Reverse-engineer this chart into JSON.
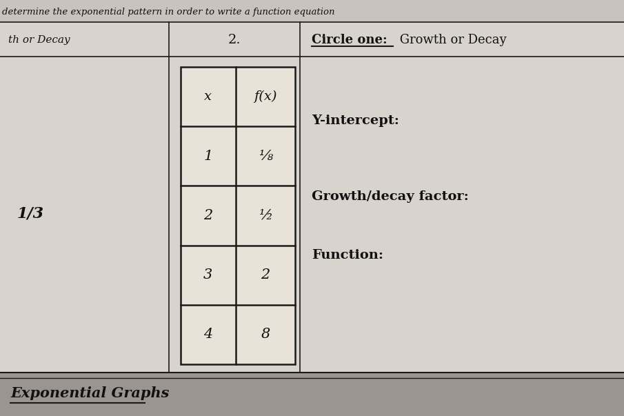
{
  "top_text": "determine the exponential pattern in order to write a function equation",
  "left_label": "th or Decay",
  "number_label": "2.",
  "circle_one_prefix": "Circle one:",
  "circle_one_rest": " Growth or Decay",
  "left_fraction": "1/3",
  "y_intercept_label": "Y-intercept:",
  "growth_decay_label": "Growth/decay factor:",
  "function_label": "Function:",
  "table_headers": [
    "x",
    "f(x)"
  ],
  "table_rows": [
    [
      "1",
      "⅛"
    ],
    [
      "2",
      "½"
    ],
    [
      "3",
      "2"
    ],
    [
      "4",
      "8"
    ]
  ],
  "footer_text": "Exponential Graphs",
  "page_bg": "#d8d3cc",
  "table_bg": "#e8e2d8",
  "footer_bg": "#9a9590",
  "line_color": "#1a1a1a",
  "text_color": "#111111",
  "top_bar_color": "#c8c3bc"
}
